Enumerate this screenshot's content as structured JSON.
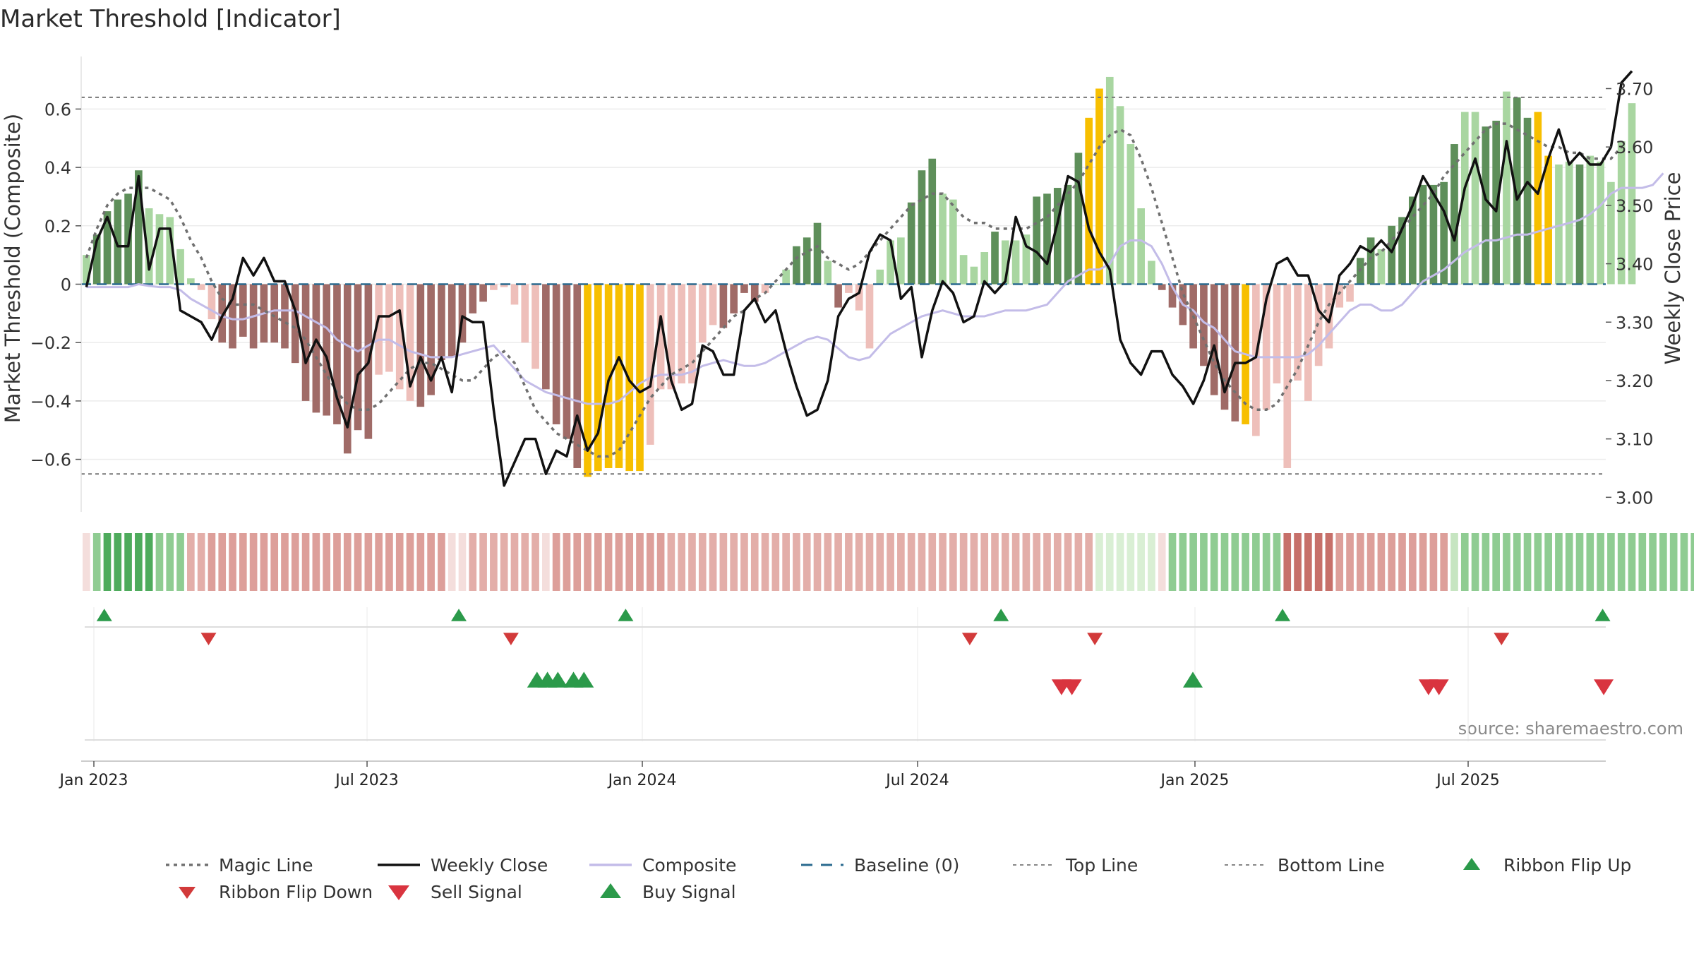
{
  "title": "Market Threshold [Indicator]",
  "source": "source: sharemaestro.com",
  "colors": {
    "dark_green": "#5e8f5a",
    "light_green": "#a9d6a1",
    "dark_red": "#a06b67",
    "light_red": "#eebfba",
    "extreme": "#f7bf00",
    "composite": "#c3bce8",
    "close": "#111111",
    "magic": "#707070",
    "baseline": "#2a6a8f",
    "signal_green": "#2b9a4a",
    "signal_red": "#d9343f"
  },
  "chart_data": {
    "type": "bar+line",
    "title": "Market Threshold [Indicator]",
    "ylabel": "Market Threshold (Composite)",
    "y2label": "Weekly Close Price",
    "ylim": [
      -0.78,
      0.78
    ],
    "y2lim": [
      2.975,
      3.755
    ],
    "yticks": [
      -0.6,
      -0.4,
      -0.2,
      0,
      0.2,
      0.4,
      0.6
    ],
    "ytick_labels": [
      "−0.6",
      "−0.4",
      "−0.2",
      "0",
      "0.2",
      "0.4",
      "0.6"
    ],
    "y2ticks": [
      3.0,
      3.1,
      3.2,
      3.3,
      3.4,
      3.5,
      3.6,
      3.7
    ],
    "y2tick_labels": [
      "3.00",
      "3.10",
      "3.20",
      "3.30",
      "3.40",
      "3.50",
      "3.60",
      "3.70"
    ],
    "x_weeks": 146,
    "xticks": [
      {
        "week": 1.0,
        "label": "Jan 2023"
      },
      {
        "week": 27.2,
        "label": "Jul 2023"
      },
      {
        "week": 53.6,
        "label": "Jan 2024"
      },
      {
        "week": 80.0,
        "label": "Jul 2024"
      },
      {
        "week": 106.6,
        "label": "Jan 2025"
      },
      {
        "week": 132.8,
        "label": "Jul 2025"
      }
    ],
    "top_line": 0.64,
    "bottom_line": -0.65,
    "composite": [
      0.1,
      0.17,
      0.25,
      0.29,
      0.31,
      0.39,
      0.26,
      0.24,
      0.23,
      0.12,
      0.02,
      -0.02,
      -0.12,
      -0.2,
      -0.22,
      -0.18,
      -0.22,
      -0.2,
      -0.2,
      -0.22,
      -0.27,
      -0.4,
      -0.44,
      -0.45,
      -0.48,
      -0.58,
      -0.5,
      -0.53,
      -0.31,
      -0.3,
      -0.36,
      -0.4,
      -0.42,
      -0.38,
      -0.26,
      -0.25,
      -0.2,
      -0.1,
      -0.06,
      -0.02,
      -0.01,
      -0.07,
      -0.2,
      -0.29,
      -0.36,
      -0.48,
      -0.53,
      -0.63,
      -0.66,
      -0.64,
      -0.63,
      -0.63,
      -0.64,
      -0.64,
      -0.55,
      -0.36,
      -0.36,
      -0.34,
      -0.34,
      -0.2,
      -0.14,
      -0.15,
      -0.1,
      -0.03,
      -0.06,
      -0.03,
      0.0,
      0.05,
      0.13,
      0.16,
      0.21,
      0.08,
      -0.08,
      -0.03,
      -0.09,
      -0.22,
      0.05,
      0.15,
      0.16,
      0.28,
      0.39,
      0.43,
      0.31,
      0.29,
      0.1,
      0.06,
      0.11,
      0.18,
      0.15,
      0.15,
      0.17,
      0.3,
      0.31,
      0.33,
      0.34,
      0.45,
      0.57,
      0.67,
      0.71,
      0.61,
      0.48,
      0.26,
      0.08,
      -0.02,
      -0.08,
      -0.14,
      -0.22,
      -0.28,
      -0.38,
      -0.43,
      -0.47,
      -0.48,
      -0.52,
      -0.43,
      -0.34,
      -0.63,
      -0.33,
      -0.4,
      -0.28,
      -0.22,
      -0.08,
      -0.06,
      0.09,
      0.16,
      0.12,
      0.2,
      0.23,
      0.3,
      0.34,
      0.34,
      0.35,
      0.48,
      0.59,
      0.59,
      0.54,
      0.56,
      0.66,
      0.64,
      0.57,
      0.59,
      0.44,
      0.41,
      0.42,
      0.41,
      0.44,
      0.42,
      0.35,
      0.49,
      0.62
    ],
    "bar_color_codes": "LDDDDDLLLLLCCDDDDDDDDDDDDDDDCCCCDDDDDDDCCCCCDDDDYYYYYYCCCCCCCDDDDCLLDDDLDCCCLLLDDDLLLLLDLLLDDDDDYYLLLLLDDDDDDDDYCCCCCCCLLLDDLDDDDDDDLLDDLDDYYLLDLLLLLDDDDLLY",
    "close": [
      3.36,
      3.44,
      3.48,
      3.43,
      3.43,
      3.55,
      3.39,
      3.46,
      3.46,
      3.32,
      3.31,
      3.3,
      3.27,
      3.31,
      3.34,
      3.41,
      3.38,
      3.41,
      3.37,
      3.37,
      3.32,
      3.23,
      3.27,
      3.24,
      3.17,
      3.12,
      3.21,
      3.23,
      3.31,
      3.31,
      3.32,
      3.19,
      3.24,
      3.2,
      3.24,
      3.18,
      3.31,
      3.3,
      3.3,
      3.15,
      3.02,
      3.06,
      3.1,
      3.1,
      3.04,
      3.08,
      3.07,
      3.14,
      3.08,
      3.11,
      3.2,
      3.24,
      3.2,
      3.18,
      3.19,
      3.31,
      3.2,
      3.15,
      3.16,
      3.26,
      3.25,
      3.21,
      3.21,
      3.32,
      3.34,
      3.3,
      3.32,
      3.25,
      3.19,
      3.14,
      3.15,
      3.2,
      3.31,
      3.34,
      3.35,
      3.42,
      3.45,
      3.44,
      3.34,
      3.36,
      3.24,
      3.32,
      3.37,
      3.35,
      3.3,
      3.31,
      3.37,
      3.35,
      3.37,
      3.48,
      3.43,
      3.42,
      3.4,
      3.47,
      3.55,
      3.54,
      3.46,
      3.42,
      3.39,
      3.27,
      3.23,
      3.21,
      3.25,
      3.25,
      3.21,
      3.19,
      3.16,
      3.2,
      3.26,
      3.18,
      3.23,
      3.23,
      3.24,
      3.34,
      3.4,
      3.41,
      3.38,
      3.38,
      3.32,
      3.3,
      3.38,
      3.4,
      3.43,
      3.42,
      3.44,
      3.42,
      3.46,
      3.5,
      3.55,
      3.52,
      3.49,
      3.44,
      3.53,
      3.58,
      3.51,
      3.49,
      3.61,
      3.51,
      3.54,
      3.52,
      3.58,
      3.63,
      3.57,
      3.59,
      3.57,
      3.57,
      3.6,
      3.71,
      3.73
    ],
    "composite_line": [
      3.36,
      3.36,
      3.36,
      3.36,
      3.36,
      3.365,
      3.362,
      3.36,
      3.36,
      3.355,
      3.34,
      3.33,
      3.32,
      3.31,
      3.305,
      3.305,
      3.31,
      3.315,
      3.32,
      3.32,
      3.32,
      3.31,
      3.3,
      3.29,
      3.27,
      3.26,
      3.25,
      3.26,
      3.27,
      3.27,
      3.26,
      3.25,
      3.245,
      3.24,
      3.24,
      3.24,
      3.245,
      3.25,
      3.255,
      3.26,
      3.24,
      3.22,
      3.2,
      3.19,
      3.18,
      3.175,
      3.17,
      3.165,
      3.16,
      3.16,
      3.16,
      3.165,
      3.18,
      3.195,
      3.205,
      3.21,
      3.21,
      3.21,
      3.215,
      3.225,
      3.23,
      3.235,
      3.23,
      3.225,
      3.225,
      3.23,
      3.24,
      3.25,
      3.26,
      3.27,
      3.275,
      3.27,
      3.255,
      3.24,
      3.235,
      3.24,
      3.26,
      3.28,
      3.29,
      3.3,
      3.31,
      3.315,
      3.32,
      3.315,
      3.31,
      3.31,
      3.31,
      3.315,
      3.32,
      3.32,
      3.32,
      3.325,
      3.33,
      3.35,
      3.37,
      3.38,
      3.39,
      3.39,
      3.4,
      3.43,
      3.44,
      3.44,
      3.43,
      3.4,
      3.36,
      3.33,
      3.32,
      3.3,
      3.29,
      3.27,
      3.25,
      3.245,
      3.24,
      3.24,
      3.24,
      3.24,
      3.24,
      3.245,
      3.26,
      3.28,
      3.3,
      3.32,
      3.33,
      3.33,
      3.32,
      3.32,
      3.33,
      3.35,
      3.37,
      3.38,
      3.39,
      3.405,
      3.42,
      3.43,
      3.44,
      3.44,
      3.445,
      3.45,
      3.45,
      3.455,
      3.46,
      3.465,
      3.47,
      3.475,
      3.485,
      3.5,
      3.52,
      3.53,
      3.53,
      3.53,
      3.535,
      3.555
    ],
    "magic_line": [
      3.41,
      3.46,
      3.5,
      3.52,
      3.53,
      3.53,
      3.53,
      3.52,
      3.51,
      3.48,
      3.44,
      3.41,
      3.37,
      3.34,
      3.33,
      3.33,
      3.33,
      3.32,
      3.31,
      3.3,
      3.29,
      3.27,
      3.24,
      3.21,
      3.18,
      3.16,
      3.15,
      3.15,
      3.16,
      3.18,
      3.2,
      3.22,
      3.23,
      3.23,
      3.22,
      3.21,
      3.2,
      3.2,
      3.22,
      3.24,
      3.25,
      3.23,
      3.19,
      3.15,
      3.13,
      3.11,
      3.1,
      3.09,
      3.08,
      3.07,
      3.07,
      3.08,
      3.11,
      3.14,
      3.17,
      3.19,
      3.21,
      3.22,
      3.23,
      3.25,
      3.27,
      3.29,
      3.31,
      3.32,
      3.34,
      3.35,
      3.37,
      3.39,
      3.41,
      3.42,
      3.43,
      3.41,
      3.4,
      3.39,
      3.4,
      3.42,
      3.44,
      3.46,
      3.48,
      3.5,
      3.51,
      3.52,
      3.52,
      3.5,
      3.48,
      3.47,
      3.47,
      3.46,
      3.46,
      3.46,
      3.46,
      3.47,
      3.48,
      3.5,
      3.52,
      3.54,
      3.57,
      3.6,
      3.62,
      3.63,
      3.62,
      3.58,
      3.53,
      3.47,
      3.41,
      3.35,
      3.31,
      3.27,
      3.23,
      3.2,
      3.18,
      3.16,
      3.15,
      3.15,
      3.16,
      3.19,
      3.22,
      3.26,
      3.3,
      3.33,
      3.35,
      3.37,
      3.39,
      3.41,
      3.42,
      3.44,
      3.46,
      3.48,
      3.5,
      3.52,
      3.55,
      3.57,
      3.59,
      3.61,
      3.63,
      3.64,
      3.64,
      3.63,
      3.62,
      3.61,
      3.6,
      3.6,
      3.59,
      3.59,
      3.58,
      3.58,
      3.58,
      3.6
    ],
    "ribbon_codes": "pgGGGGGgggllRRRRRRRRRRRRRRRRRRRRRRRpplllllllpRRRRRRRRRRRlllllllllllllllllllllllllllllllllllllllllwwwwwwpgggggggggggrrrrrRRRRRRRRRRRqgggggggggggggggggggggggggwpppppppppp",
    "ribbon_flip_up": [
      2,
      36,
      52,
      88,
      115,
      145.7
    ],
    "ribbon_flip_down": [
      12,
      41,
      85,
      97,
      136
    ],
    "buy_signals": [
      43.5,
      44.5,
      45.5,
      47,
      48
    ],
    "sell_signals": [
      93.8,
      94.8,
      129,
      130,
      145.8
    ],
    "buy_signals_low": [
      106.4
    ],
    "legend": [
      {
        "key": "magic",
        "label": "Magic Line"
      },
      {
        "key": "close",
        "label": "Weekly Close"
      },
      {
        "key": "composite",
        "label": "Composite"
      },
      {
        "key": "baseline",
        "label": "Baseline (0)"
      },
      {
        "key": "top",
        "label": "Top Line"
      },
      {
        "key": "bottom",
        "label": "Bottom Line"
      },
      {
        "key": "flip_up",
        "label": "Ribbon Flip Up"
      },
      {
        "key": "flip_down",
        "label": "Ribbon Flip Down"
      },
      {
        "key": "sell",
        "label": "Sell Signal"
      },
      {
        "key": "buy",
        "label": "Buy Signal"
      }
    ]
  }
}
